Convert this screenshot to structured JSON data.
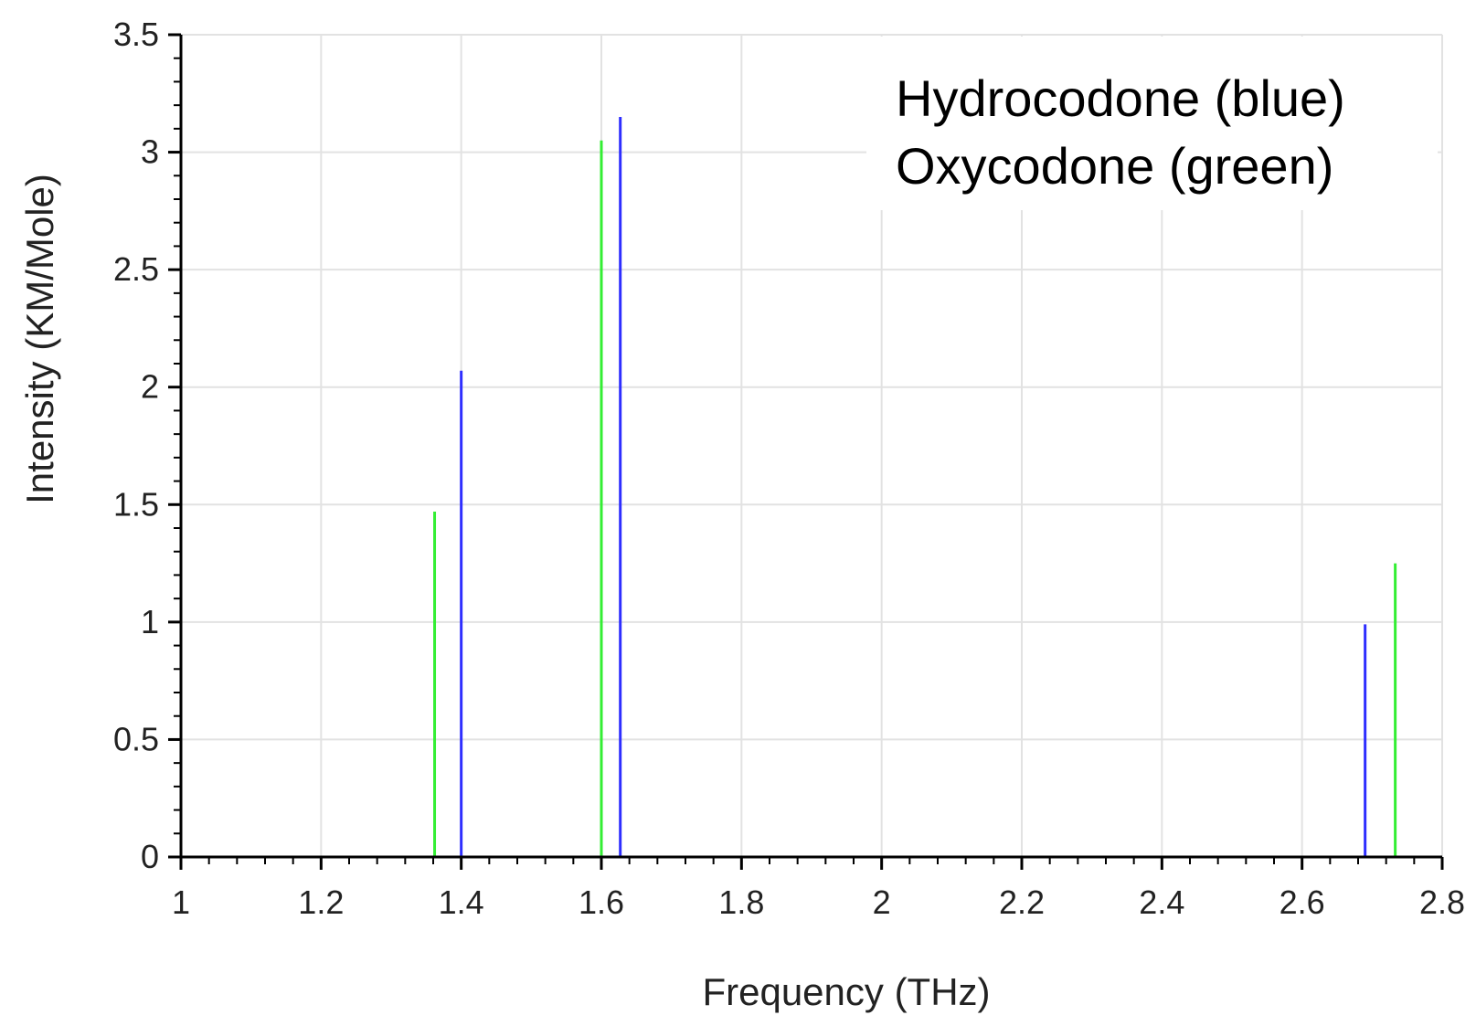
{
  "chart_data": {
    "type": "bar",
    "subtype": "stick-spectrum",
    "xlabel": "Frequency (THz)",
    "ylabel": "Intensity (KM/Mole)",
    "xlim": [
      1,
      2.8
    ],
    "ylim": [
      0,
      3.5
    ],
    "x_ticks": [
      "1",
      "1.2",
      "1.4",
      "1.6",
      "1.8",
      "2",
      "2.2",
      "2.4",
      "2.6",
      "2.8"
    ],
    "y_ticks": [
      "0",
      "0.5",
      "1",
      "1.5",
      "2",
      "2.5",
      "3",
      "3.5"
    ],
    "grid": true,
    "annotation_lines": [
      "Hydrocodone (blue)",
      "Oxycodone (green)"
    ],
    "annotation_placement": "top-right",
    "series": [
      {
        "name": "Hydrocodone",
        "color": "#2e2eff",
        "x": [
          1.4,
          1.627,
          2.69
        ],
        "values": [
          2.07,
          3.15,
          0.99
        ]
      },
      {
        "name": "Oxycodone",
        "color": "#33ee33",
        "x": [
          1.362,
          1.6,
          2.733
        ],
        "values": [
          1.47,
          3.05,
          1.25
        ]
      }
    ]
  }
}
